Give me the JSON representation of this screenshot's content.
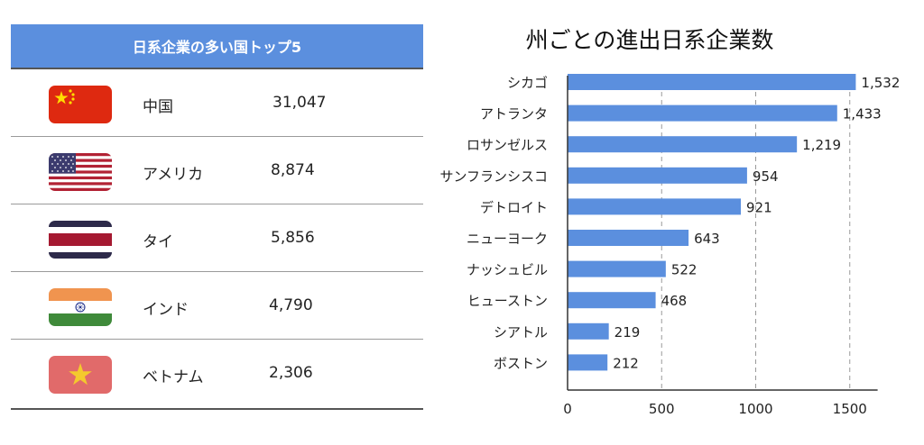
{
  "table": {
    "title": "日系企業の多い国トップ5",
    "rows": [
      {
        "country": "中国",
        "count": "31,047",
        "flag_icon": "china-flag-icon"
      },
      {
        "country": "アメリカ",
        "count": "8,874",
        "flag_icon": "usa-flag-icon"
      },
      {
        "country": "タイ",
        "count": "5,856",
        "flag_icon": "thailand-flag-icon"
      },
      {
        "country": "インド",
        "count": "4,790",
        "flag_icon": "india-flag-icon"
      },
      {
        "country": "ベトナム",
        "count": "2,306",
        "flag_icon": "vietnam-flag-icon"
      }
    ]
  },
  "chart_data": {
    "type": "bar",
    "orientation": "horizontal",
    "title": "州ごとの進出日系企業数",
    "categories": [
      "シカゴ",
      "アトランタ",
      "ロサンゼルス",
      "サンフランシスコ",
      "デトロイト",
      "ニューヨーク",
      "ナッシュビル",
      "ヒューストン",
      "シアトル",
      "ボストン"
    ],
    "values": [
      1532,
      1433,
      1219,
      954,
      921,
      643,
      522,
      468,
      219,
      212
    ],
    "value_labels": [
      "1,532",
      "1,433",
      "1,219",
      "954",
      "921",
      "643",
      "522",
      "468",
      "219",
      "212"
    ],
    "x_ticks": [
      "0",
      "500",
      "1000",
      "1500"
    ],
    "xlim": [
      0,
      1600
    ],
    "grid": "vertical dashed",
    "bar_color": "#5b8fde"
  }
}
